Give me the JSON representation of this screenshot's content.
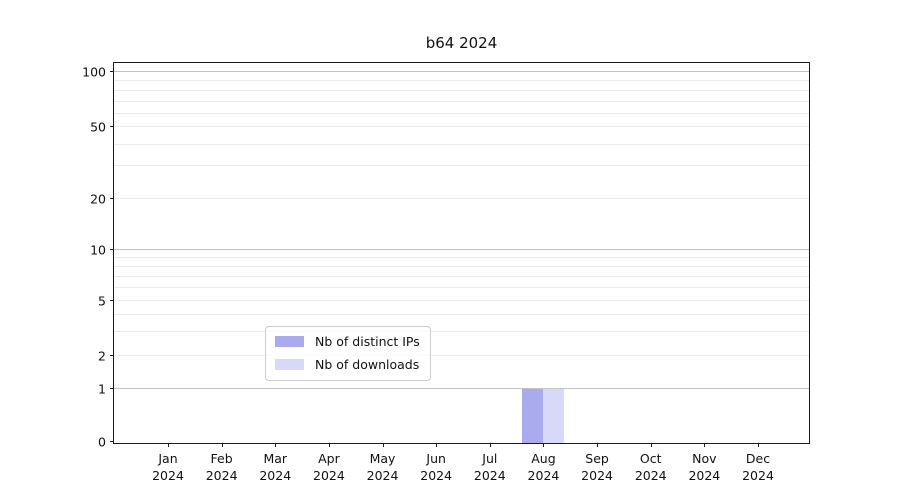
{
  "title": "b64 2024",
  "legend": {
    "items": [
      {
        "label": "Nb of distinct IPs",
        "color": "#aaaaee"
      },
      {
        "label": "Nb of downloads",
        "color": "#d8d8f8"
      }
    ]
  },
  "chart_data": {
    "type": "bar",
    "title": "b64 2024",
    "categories": [
      {
        "month": "Jan",
        "year": "2024"
      },
      {
        "month": "Feb",
        "year": "2024"
      },
      {
        "month": "Mar",
        "year": "2024"
      },
      {
        "month": "Apr",
        "year": "2024"
      },
      {
        "month": "May",
        "year": "2024"
      },
      {
        "month": "Jun",
        "year": "2024"
      },
      {
        "month": "Jul",
        "year": "2024"
      },
      {
        "month": "Aug",
        "year": "2024"
      },
      {
        "month": "Sep",
        "year": "2024"
      },
      {
        "month": "Oct",
        "year": "2024"
      },
      {
        "month": "Nov",
        "year": "2024"
      },
      {
        "month": "Dec",
        "year": "2024"
      }
    ],
    "series": [
      {
        "name": "Nb of distinct IPs",
        "color": "#aaaaee",
        "values": [
          0,
          0,
          0,
          0,
          0,
          0,
          0,
          1,
          0,
          0,
          0,
          0
        ]
      },
      {
        "name": "Nb of downloads",
        "color": "#d8d8f8",
        "values": [
          0,
          0,
          0,
          0,
          0,
          0,
          0,
          1,
          0,
          0,
          0,
          0
        ]
      }
    ],
    "xlabel": "",
    "ylabel": "",
    "yscale": "symlog",
    "ylim": [
      0,
      100
    ],
    "grid": "horizontal, major and minor",
    "legend_position": "lower center",
    "yticks": [
      {
        "value": 0,
        "f": 0.003,
        "major": false
      },
      {
        "value": 1,
        "f": 0.141,
        "major": true
      },
      {
        "value": 2,
        "f": 0.228,
        "major": false
      },
      {
        "value": 5,
        "f": 0.374,
        "major": false
      },
      {
        "value": 10,
        "f": 0.508,
        "major": true
      },
      {
        "value": 20,
        "f": 0.641,
        "major": false
      },
      {
        "value": 50,
        "f": 0.832,
        "major": false
      },
      {
        "value": 100,
        "f": 0.976,
        "major": true
      }
    ],
    "minor_gridlines": [
      {
        "value": 3,
        "f": 0.293
      },
      {
        "value": 4,
        "f": 0.338
      },
      {
        "value": 6,
        "f": 0.408
      },
      {
        "value": 7,
        "f": 0.437
      },
      {
        "value": 8,
        "f": 0.463
      },
      {
        "value": 9,
        "f": 0.487
      },
      {
        "value": 30,
        "f": 0.728
      },
      {
        "value": 40,
        "f": 0.785
      },
      {
        "value": 60,
        "f": 0.866
      },
      {
        "value": 70,
        "f": 0.898
      },
      {
        "value": 80,
        "f": 0.927
      },
      {
        "value": 90,
        "f": 0.953
      }
    ]
  }
}
